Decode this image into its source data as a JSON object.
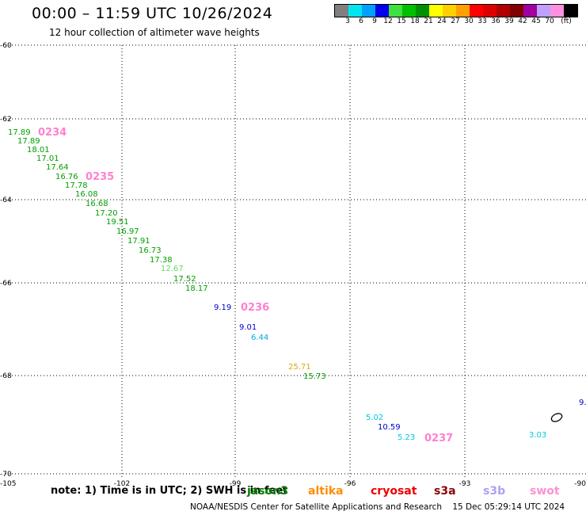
{
  "header": {
    "title": "00:00 – 11:59 UTC 10/26/2024",
    "subtitle": "12 hour collection of altimeter wave heights"
  },
  "colorbar": {
    "colors": [
      "#7f7f7f",
      "#00e5ee",
      "#00a0ff",
      "#0000ee",
      "#40e040",
      "#00c000",
      "#009000",
      "#ffff00",
      "#ffd000",
      "#ffa000",
      "#ff0000",
      "#dd0000",
      "#b00000",
      "#800000",
      "#a000a0",
      "#c0a0ff",
      "#ff90e0",
      "#000000"
    ],
    "labels": [
      "3",
      "6",
      "9",
      "12",
      "15",
      "18",
      "21",
      "24",
      "27",
      "30",
      "33",
      "36",
      "39",
      "42",
      "45",
      "70",
      "(ft)"
    ]
  },
  "map": {
    "lon_range": [
      -105,
      -90
    ],
    "lat_range": [
      -70,
      -60
    ],
    "x_ticks": [
      "-105",
      "-102",
      "-99",
      "-96",
      "-93",
      "-90"
    ],
    "y_ticks": [
      "-60",
      "-62",
      "-64",
      "-66",
      "-68",
      "-70"
    ],
    "grid": true,
    "observations": [
      {
        "text": "17.89",
        "color": "#00a000"
      },
      {
        "text": "17.89",
        "color": "#00a000"
      },
      {
        "text": "18.01",
        "color": "#00a000"
      },
      {
        "text": "17.01",
        "color": "#00a000"
      },
      {
        "text": "17.64",
        "color": "#00a000"
      },
      {
        "text": "16.76",
        "color": "#00a000"
      },
      {
        "text": "17.78",
        "color": "#00a000"
      },
      {
        "text": "16.08",
        "color": "#00a000"
      },
      {
        "text": "16.68",
        "color": "#00a000"
      },
      {
        "text": "17.20",
        "color": "#00a000"
      },
      {
        "text": "19.51",
        "color": "#00a000"
      },
      {
        "text": "16.97",
        "color": "#00a000"
      },
      {
        "text": "17.91",
        "color": "#00a000"
      },
      {
        "text": "16.73",
        "color": "#00a000"
      },
      {
        "text": "17.38",
        "color": "#00a000"
      },
      {
        "text": "12.67",
        "color": "#60e060"
      },
      {
        "text": "17.52",
        "color": "#00a000"
      },
      {
        "text": "18.17",
        "color": "#00a000"
      },
      {
        "text": "9.19",
        "color": "#0000cc"
      },
      {
        "text": "9.01",
        "color": "#0000cc"
      },
      {
        "text": "6.44",
        "color": "#00a8e0"
      },
      {
        "text": "25.71",
        "color": "#e0a800"
      },
      {
        "text": "15.73",
        "color": "#00a000"
      },
      {
        "text": "5.02",
        "color": "#00c8e0"
      },
      {
        "text": "10.59",
        "color": "#0000cc"
      },
      {
        "text": "5.23",
        "color": "#00c8e0"
      },
      {
        "text": "3.03",
        "color": "#00c8e0"
      },
      {
        "text": "9.",
        "color": "#0000cc"
      }
    ],
    "pass_times": [
      {
        "text": "0234",
        "color": "#ff80d0"
      },
      {
        "text": "0235",
        "color": "#ff80d0"
      },
      {
        "text": "0236",
        "color": "#ff80d0"
      },
      {
        "text": "0237",
        "color": "#ff80d0"
      }
    ]
  },
  "legend": {
    "note": "note: 1) Time is in UTC; 2) SWH is in feet",
    "satellites": [
      {
        "name": "jason3",
        "color": "#008000"
      },
      {
        "name": "altika",
        "color": "#ff8c00"
      },
      {
        "name": "cryosat",
        "color": "#ee0000"
      },
      {
        "name": "s3a",
        "color": "#8b0000"
      },
      {
        "name": "s3b",
        "color": "#b0a0f0"
      },
      {
        "name": "swot",
        "color": "#ff90d0"
      }
    ]
  },
  "footer": {
    "credit": "NOAA/NESDIS Center for Satellite Applications and Research",
    "timestamp": "15 Dec 05:29:14 UTC 2024"
  }
}
